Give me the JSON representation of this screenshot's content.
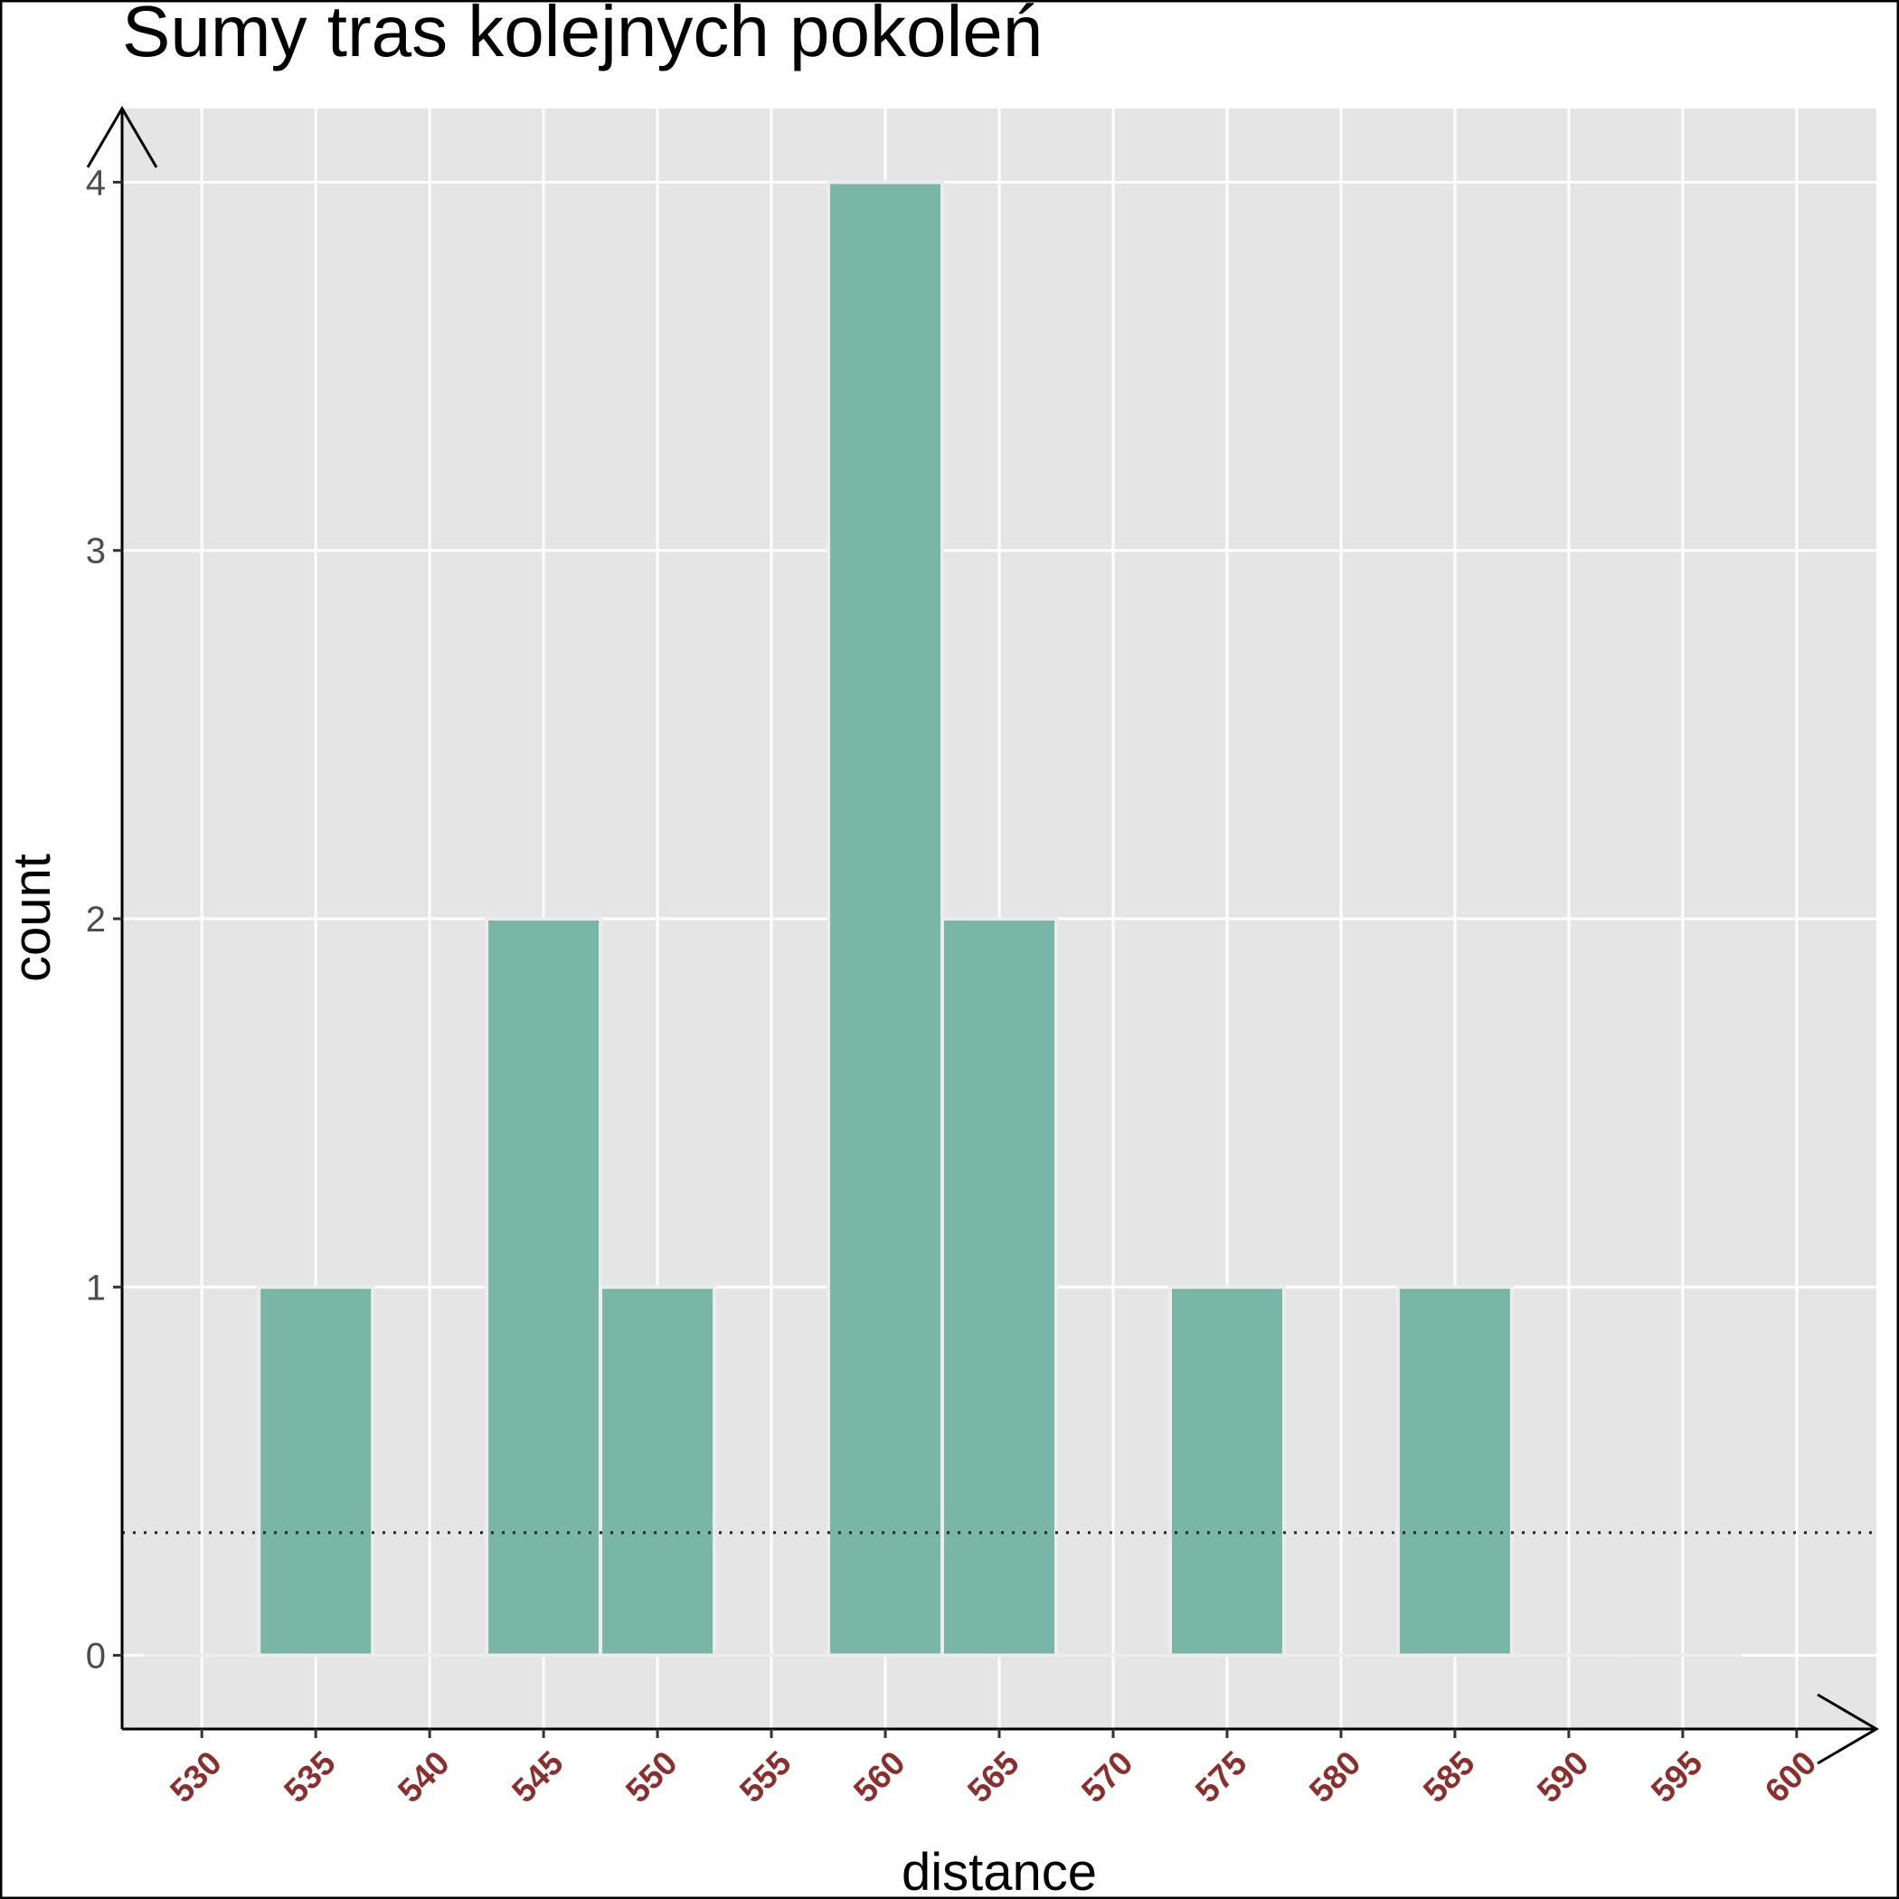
{
  "chart_data": {
    "type": "bar",
    "title": "Sumy tras kolejnych pokoleń",
    "xlabel": "distance",
    "ylabel": "count",
    "xlim": [
      526.5,
      603.5
    ],
    "ylim": [
      -0.2,
      4.2
    ],
    "x_ticks": [
      530,
      535,
      540,
      545,
      550,
      555,
      560,
      565,
      570,
      575,
      580,
      585,
      590,
      595,
      600
    ],
    "y_ticks": [
      0,
      1,
      2,
      3,
      4
    ],
    "bin_width": 5,
    "bins": [
      {
        "x": 530,
        "count": 0
      },
      {
        "x": 535,
        "count": 1
      },
      {
        "x": 540,
        "count": 0
      },
      {
        "x": 545,
        "count": 2
      },
      {
        "x": 550,
        "count": 1
      },
      {
        "x": 555,
        "count": 0
      },
      {
        "x": 560,
        "count": 4
      },
      {
        "x": 565,
        "count": 2
      },
      {
        "x": 570,
        "count": 0
      },
      {
        "x": 575,
        "count": 1
      },
      {
        "x": 580,
        "count": 0
      },
      {
        "x": 585,
        "count": 1
      },
      {
        "x": 590,
        "count": 0
      },
      {
        "x": 595,
        "count": 0
      }
    ],
    "reference_line": {
      "y": 0.333,
      "style": "dotted"
    },
    "grid": true,
    "colors": {
      "bar": "#7ab6a6",
      "panel": "#e5e5e5",
      "grid": "#ffffff",
      "x_tick_label": "#8b2e2e",
      "y_tick_label": "#4d4d4d",
      "axis": "#000000"
    }
  }
}
